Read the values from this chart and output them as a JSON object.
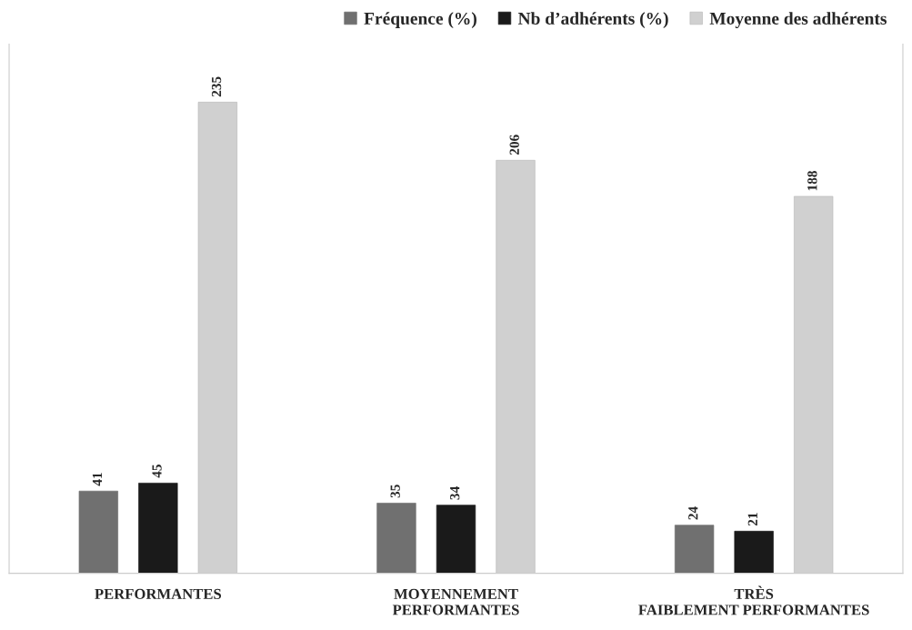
{
  "chart_data": {
    "type": "bar",
    "categories": [
      "PERFORMANTES",
      "MOYENNEMENT PERFORMANTES",
      "TRÈS FAIBLEMENT PERFORMANTES"
    ],
    "series": [
      {
        "name": "Fréquence (%)",
        "color": "#707070",
        "values": [
          41,
          35,
          24
        ]
      },
      {
        "name": "Nb d’adhérents (%)",
        "color": "#1a1a1a",
        "values": [
          45,
          34,
          21
        ]
      },
      {
        "name": "Moyenne des adhérents",
        "color": "#d0d0d0",
        "values": [
          235,
          206,
          188
        ]
      }
    ],
    "data_labels": true,
    "legend": "top right",
    "grid": false
  }
}
